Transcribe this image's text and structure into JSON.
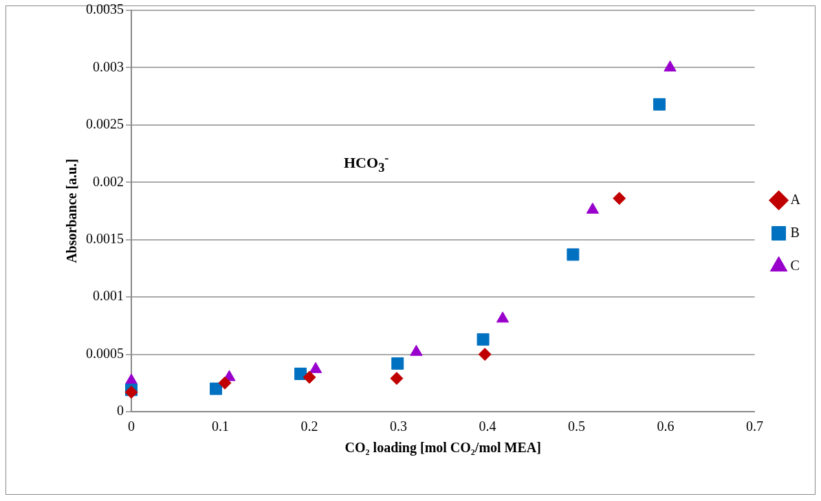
{
  "chart_data": {
    "type": "scatter",
    "xlabel": "CO₂ loading [mol CO₂/mol MEA]",
    "ylabel": "Absorbance [a.u.]",
    "annotations": [
      "HCO$_{3}$$^{-}$"
    ],
    "xlim": [
      0,
      0.7
    ],
    "xticks": [
      0,
      0.1,
      0.2,
      0.3,
      0.4,
      0.5,
      0.6,
      0.7
    ],
    "ylim": [
      0,
      0.0035
    ],
    "yticks": [
      0,
      0.0005,
      0.001,
      0.0015,
      0.002,
      0.0025,
      0.003,
      0.0035
    ],
    "grid": "y",
    "legend": "right",
    "series": [
      {
        "name": "A",
        "color": "#c00000",
        "marker": "diamond",
        "x": [
          0,
          0.105,
          0.2,
          0.298,
          0.397,
          0.548
        ],
        "values": [
          0.00017,
          0.00025,
          0.0003,
          0.00029,
          0.0005,
          0.00186
        ]
      },
      {
        "name": "B",
        "color": "#0070c0",
        "marker": "square",
        "x": [
          0,
          0.095,
          0.19,
          0.299,
          0.395,
          0.496,
          0.593
        ],
        "values": [
          0.00019,
          0.0002,
          0.00033,
          0.00042,
          0.00063,
          0.00137,
          0.00268
        ]
      },
      {
        "name": "C",
        "color": "#9900cc",
        "marker": "triangle",
        "x": [
          0,
          0.11,
          0.207,
          0.32,
          0.417,
          0.518,
          0.605
        ],
        "values": [
          0.00027,
          0.0003,
          0.00037,
          0.00052,
          0.00081,
          0.00176,
          0.003
        ]
      }
    ]
  }
}
